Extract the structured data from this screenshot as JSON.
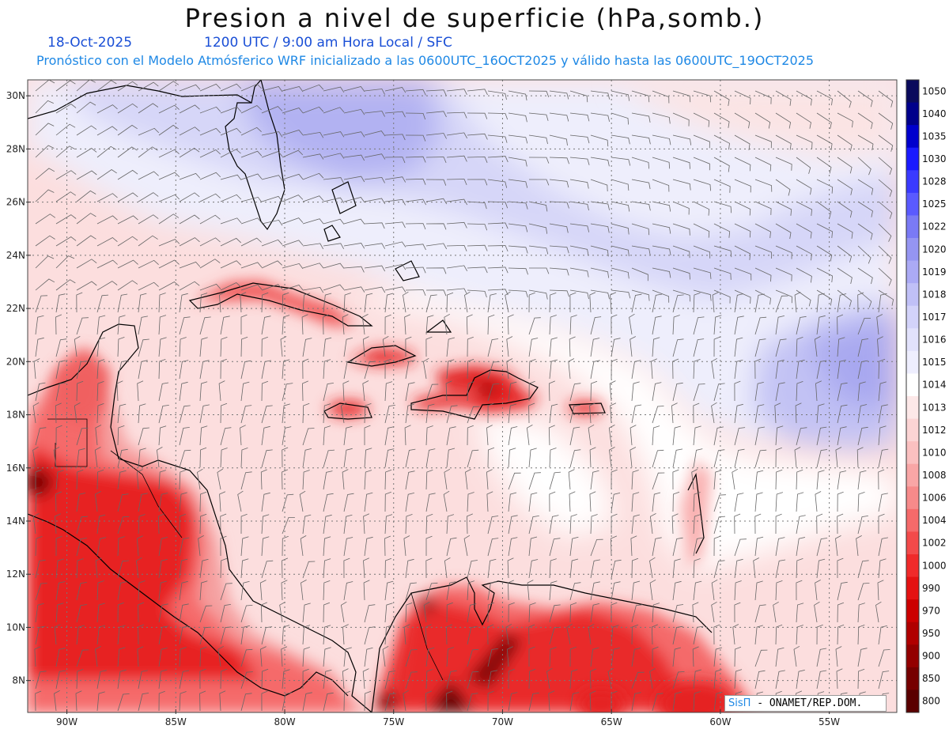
{
  "header": {
    "title": "Presion a nivel de superficie (hPa,somb.)",
    "date": "18-Oct-2025",
    "valid_time": "1200 UTC / 9:00 am Hora Local / SFC",
    "model_line": "Pronóstico con el Modelo Atmósferico WRF inicializado a las 0600UTC_16OCT2025 y válido hasta las  0600UTC_19OCT2025"
  },
  "map": {
    "lat_labels": [
      "30N",
      "28N",
      "26N",
      "24N",
      "22N",
      "20N",
      "18N",
      "16N",
      "14N",
      "12N",
      "10N",
      "8N"
    ],
    "lon_labels": [
      "90W",
      "85W",
      "80W",
      "75W",
      "70W",
      "65W",
      "60W",
      "55W"
    ],
    "lat_range": [
      6.8,
      30.6
    ],
    "lon_range": [
      -91.8,
      -51.9
    ]
  },
  "colorbar": {
    "levels": [
      "1050",
      "1040",
      "1035",
      "1030",
      "1028",
      "1025",
      "1022",
      "1020",
      "1019",
      "1018",
      "1017",
      "1016",
      "1015",
      "1014",
      "1013",
      "1012",
      "1010",
      "1008",
      "1006",
      "1004",
      "1002",
      "1000",
      "990",
      "970",
      "950",
      "900",
      "850",
      "800"
    ],
    "colors": [
      "#0a0a5c",
      "#00008b",
      "#0000cd",
      "#1a1aff",
      "#3a3aff",
      "#5a5aff",
      "#7a7af5",
      "#9595f2",
      "#abaaf5",
      "#c0c0f7",
      "#d3d3fa",
      "#e2e2fc",
      "#eeeefe",
      "#ffffff",
      "#fde8e8",
      "#fcd4d4",
      "#fbc0c0",
      "#f9a6a6",
      "#f78a8a",
      "#f56a6a",
      "#f34a4a",
      "#f02a2a",
      "#e41212",
      "#cc0000",
      "#b00000",
      "#930000",
      "#760000",
      "#5a0000"
    ]
  },
  "credit": {
    "brand": "SisΠ",
    "text": " - ONAMET/REP.DOM."
  }
}
